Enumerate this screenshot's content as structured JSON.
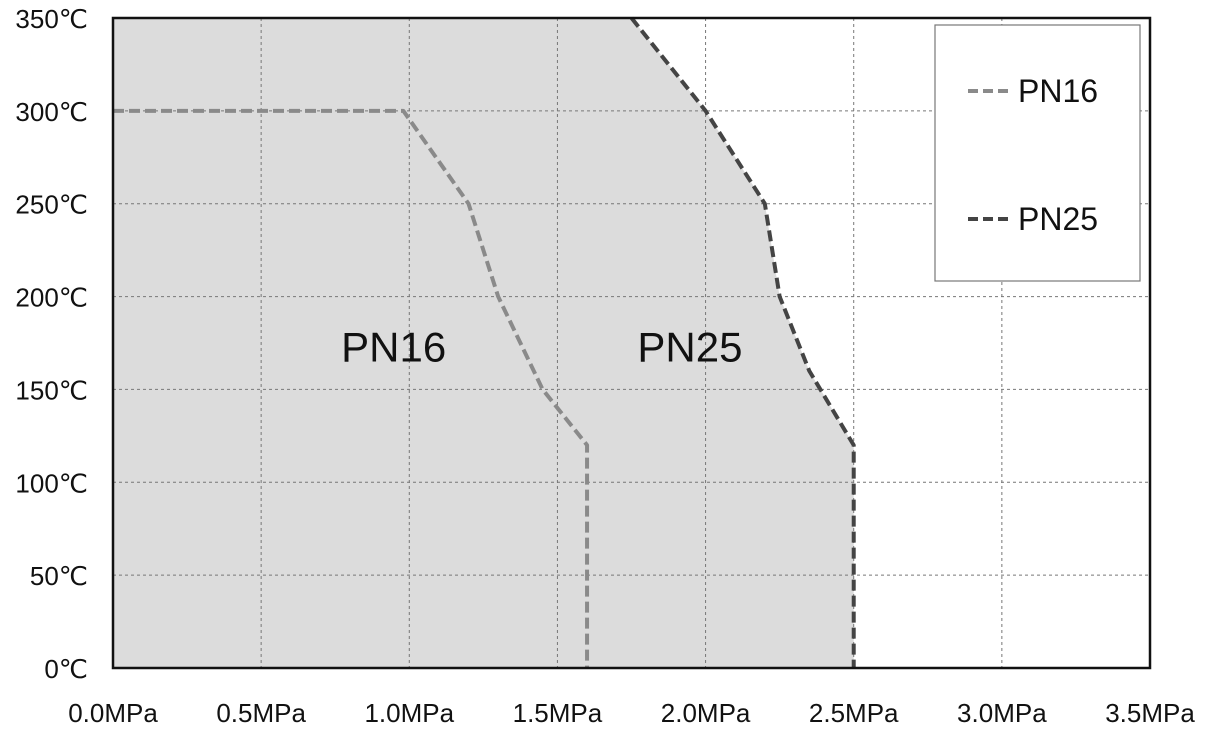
{
  "chart_data": {
    "type": "area",
    "title": "",
    "xlabel": "",
    "ylabel": "",
    "xlim": [
      0,
      3.5
    ],
    "ylim": [
      0,
      350
    ],
    "x_ticks": [
      "0.0MPa",
      "0.5MPa",
      "1.0MPa",
      "1.5MPa",
      "2.0MPa",
      "2.5MPa",
      "3.0MPa",
      "3.5MPa"
    ],
    "y_ticks": [
      "0℃",
      "50℃",
      "100℃",
      "150℃",
      "200℃",
      "250℃",
      "300℃",
      "350℃"
    ],
    "grid": true,
    "legend_position": "top-right",
    "series": [
      {
        "name": "PN16",
        "color": "#8a8a8a",
        "dash": "dashed",
        "points": [
          [
            0,
            300
          ],
          [
            0.98,
            300
          ],
          [
            1.2,
            250
          ],
          [
            1.3,
            200
          ],
          [
            1.45,
            150
          ],
          [
            1.6,
            120
          ],
          [
            1.6,
            0
          ]
        ]
      },
      {
        "name": "PN25",
        "color": "#444444",
        "dash": "dashed",
        "points": [
          [
            1.75,
            350
          ],
          [
            2.0,
            300
          ],
          [
            2.2,
            250
          ],
          [
            2.25,
            200
          ],
          [
            2.35,
            160
          ],
          [
            2.5,
            120
          ],
          [
            2.5,
            0
          ]
        ]
      }
    ],
    "fill_color": "#dcdcdc",
    "annotations": [
      {
        "text": "PN16",
        "x": 0.77,
        "y": 173
      },
      {
        "text": "PN25",
        "x": 1.77,
        "y": 173
      }
    ]
  }
}
